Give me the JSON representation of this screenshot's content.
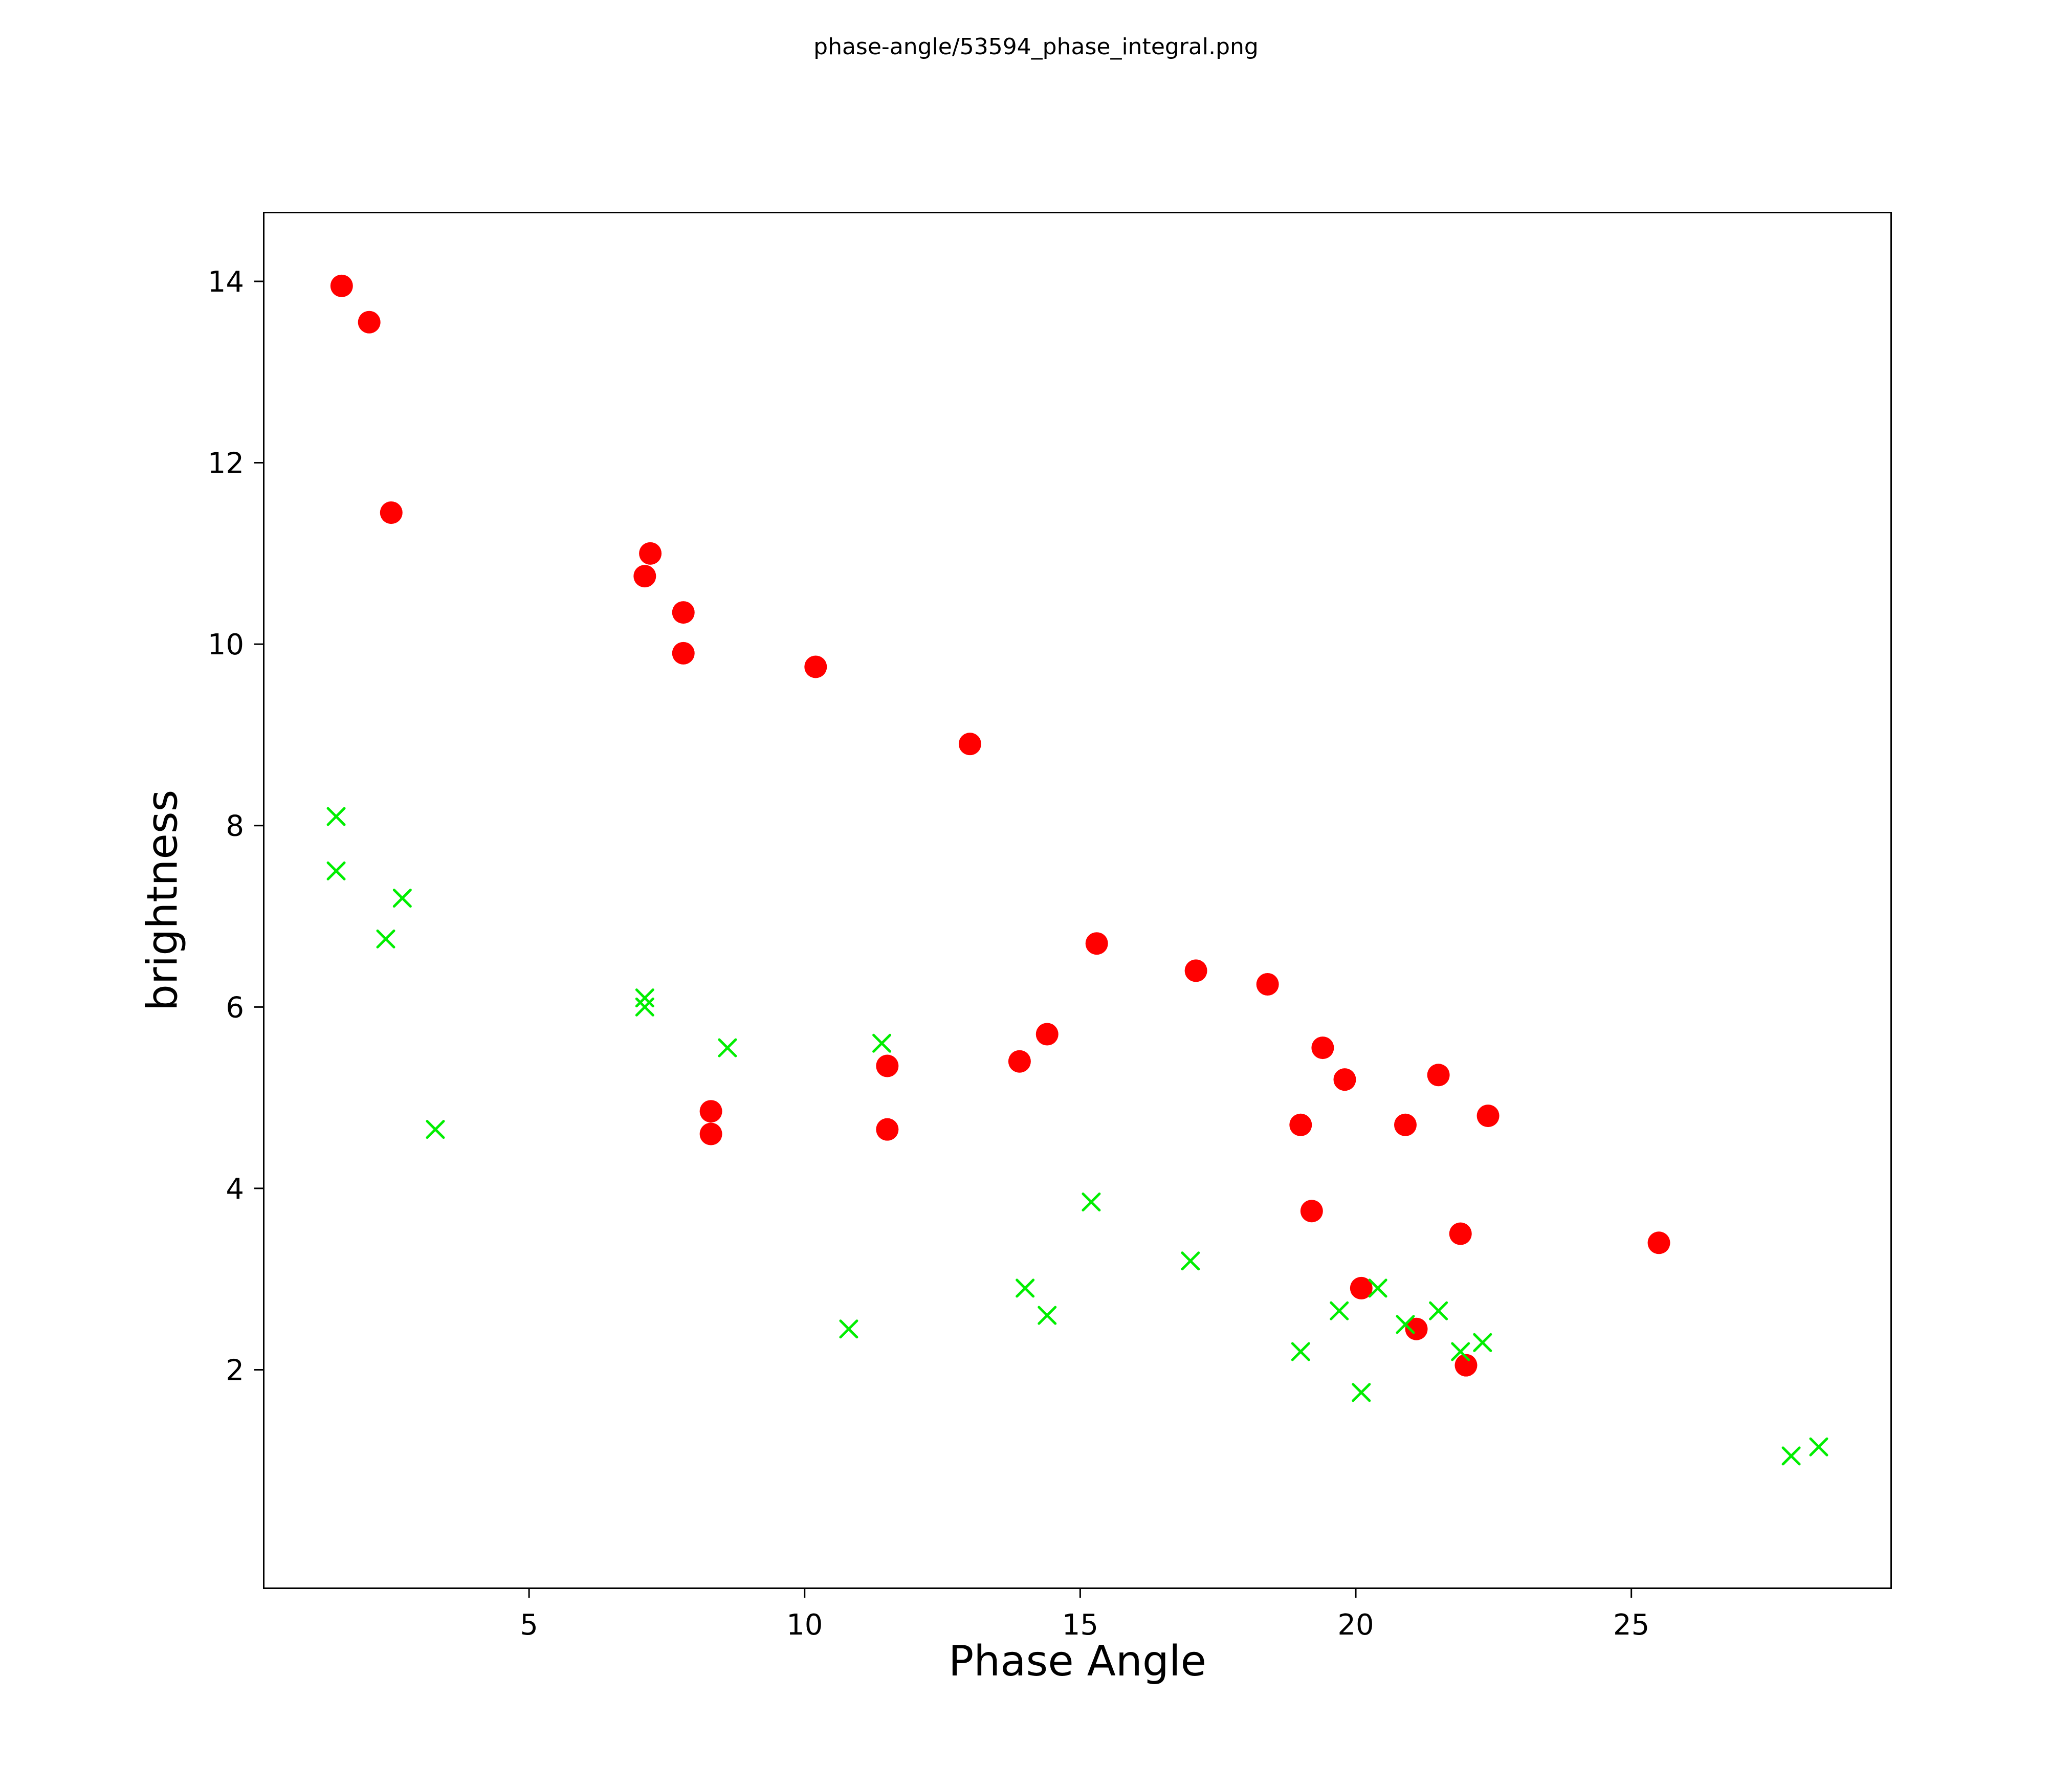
{
  "figure": {
    "background": "#ffffff"
  },
  "chart_data": {
    "type": "scatter",
    "title": "phase-angle/53594_phase_integral.png",
    "xlabel": "Phase Angle",
    "ylabel": "brightness",
    "xlim": [
      0.2,
      29.7
    ],
    "ylim": [
      -0.4,
      14.75
    ],
    "x_ticks": [
      5,
      10,
      15,
      20,
      25
    ],
    "y_ticks": [
      2,
      4,
      6,
      8,
      10,
      12,
      14
    ],
    "grid": false,
    "legend": "none",
    "series": [
      {
        "name": "red-circles",
        "marker": "circle",
        "color": "#ff0000",
        "marker_radius": 22,
        "points": [
          [
            1.6,
            13.95
          ],
          [
            2.1,
            13.55
          ],
          [
            2.5,
            11.45
          ],
          [
            7.2,
            11.0
          ],
          [
            7.1,
            10.75
          ],
          [
            7.8,
            10.35
          ],
          [
            7.8,
            9.9
          ],
          [
            10.2,
            9.75
          ],
          [
            13.0,
            8.9
          ],
          [
            15.3,
            6.7
          ],
          [
            17.1,
            6.4
          ],
          [
            18.4,
            6.25
          ],
          [
            14.4,
            5.7
          ],
          [
            13.9,
            5.4
          ],
          [
            11.5,
            5.35
          ],
          [
            19.4,
            5.55
          ],
          [
            19.8,
            5.2
          ],
          [
            21.5,
            5.25
          ],
          [
            22.4,
            4.8
          ],
          [
            19.0,
            4.7
          ],
          [
            20.9,
            4.7
          ],
          [
            8.3,
            4.85
          ],
          [
            8.3,
            4.6
          ],
          [
            11.5,
            4.65
          ],
          [
            19.2,
            3.75
          ],
          [
            21.9,
            3.5
          ],
          [
            25.5,
            3.4
          ],
          [
            20.1,
            2.9
          ],
          [
            21.1,
            2.45
          ],
          [
            22.0,
            2.05
          ]
        ]
      },
      {
        "name": "green-crosses",
        "marker": "x",
        "color": "#00ee00",
        "marker_halfsize": 16,
        "points": [
          [
            1.5,
            8.1
          ],
          [
            1.5,
            7.5
          ],
          [
            2.7,
            7.2
          ],
          [
            2.4,
            6.75
          ],
          [
            3.3,
            4.65
          ],
          [
            7.1,
            6.1
          ],
          [
            7.1,
            6.0
          ],
          [
            8.6,
            5.55
          ],
          [
            11.4,
            5.6
          ],
          [
            10.8,
            2.45
          ],
          [
            14.0,
            2.9
          ],
          [
            14.4,
            2.6
          ],
          [
            15.2,
            3.85
          ],
          [
            17.0,
            3.2
          ],
          [
            19.0,
            2.2
          ],
          [
            19.7,
            2.65
          ],
          [
            20.1,
            1.75
          ],
          [
            20.4,
            2.9
          ],
          [
            20.9,
            2.5
          ],
          [
            21.5,
            2.65
          ],
          [
            21.9,
            2.2
          ],
          [
            22.3,
            2.3
          ],
          [
            27.9,
            1.05
          ],
          [
            28.4,
            1.15
          ]
        ]
      }
    ]
  }
}
